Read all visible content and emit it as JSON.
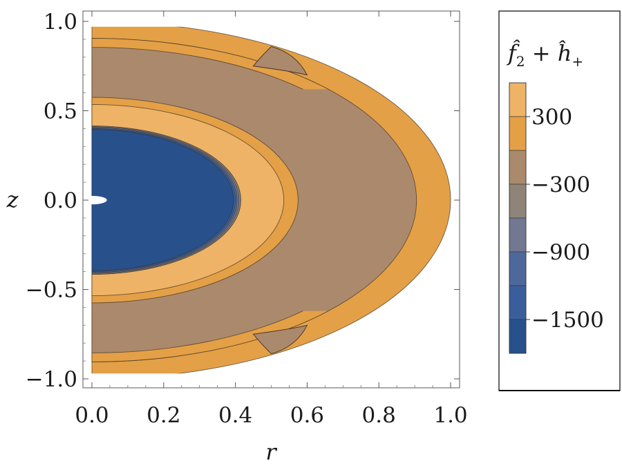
{
  "chart_data": {
    "type": "contour",
    "xlabel": "r",
    "ylabel": "z",
    "xlim": [
      0.0,
      1.0
    ],
    "ylim": [
      -1.0,
      1.0
    ],
    "xticks": [
      {
        "value": 0.0,
        "label": "0.0"
      },
      {
        "value": 0.2,
        "label": "0.2"
      },
      {
        "value": 0.4,
        "label": "0.4"
      },
      {
        "value": 0.6,
        "label": "0.6"
      },
      {
        "value": 0.8,
        "label": "0.8"
      },
      {
        "value": 1.0,
        "label": "1.0"
      }
    ],
    "yticks": [
      {
        "value": -1.0,
        "label": "−1.0"
      },
      {
        "value": -0.5,
        "label": "−0.5"
      },
      {
        "value": 0.0,
        "label": "0.0"
      },
      {
        "value": 0.5,
        "label": "0.5"
      },
      {
        "value": 1.0,
        "label": "1.0"
      }
    ],
    "legend": {
      "title_main": "f̂",
      "title_sub1": "2",
      "title_plus": " + ",
      "title_main2": "ĥ",
      "title_sub2": "+",
      "placement": "right",
      "range": [
        -1800,
        600
      ],
      "bands": [
        {
          "from": 300,
          "to": 600,
          "color": "#eeb366"
        },
        {
          "from": 0,
          "to": 300,
          "color": "#e4a046"
        },
        {
          "from": -300,
          "to": 0,
          "color": "#ab896c"
        },
        {
          "from": -600,
          "to": -300,
          "color": "#8f8478"
        },
        {
          "from": -900,
          "to": -600,
          "color": "#737892"
        },
        {
          "from": -1200,
          "to": -900,
          "color": "#4f689c"
        },
        {
          "from": -1500,
          "to": -1200,
          "color": "#3a5e9c"
        },
        {
          "from": -1800,
          "to": -1500,
          "color": "#28518c"
        }
      ],
      "tick_labels": [
        {
          "value": 300,
          "label": "300"
        },
        {
          "value": -300,
          "label": "−300"
        },
        {
          "value": -900,
          "label": "−900"
        },
        {
          "value": -1500,
          "label": "−1500"
        }
      ]
    },
    "regions": [
      {
        "name": "outer-orange-shell",
        "a": 1.0,
        "b": 1.0,
        "color": "#e4a046"
      },
      {
        "name": "outer-brown-shell",
        "a": 0.905,
        "b": 0.905,
        "color": "#ab896c"
      },
      {
        "name": "middle-orange-ring",
        "a": 0.575,
        "b": 0.575,
        "color": "#e4a046"
      },
      {
        "name": "light-orange-ring",
        "a": 0.535,
        "b": 0.535,
        "color": "#eeb366"
      },
      {
        "name": "dark-core-edge",
        "a": 0.415,
        "b": 0.415,
        "color": "#3f4f70"
      },
      {
        "name": "blue-core",
        "a": 0.395,
        "b": 0.395,
        "color": "#28518c"
      }
    ],
    "outer_cutoff_z": 0.97,
    "inner_brown_band_inner_edge": 0.855,
    "lobe_tip": {
      "r": 0.6,
      "z": 0.7
    },
    "origin_hole": {
      "r": 0.04,
      "z": 0.02
    }
  }
}
